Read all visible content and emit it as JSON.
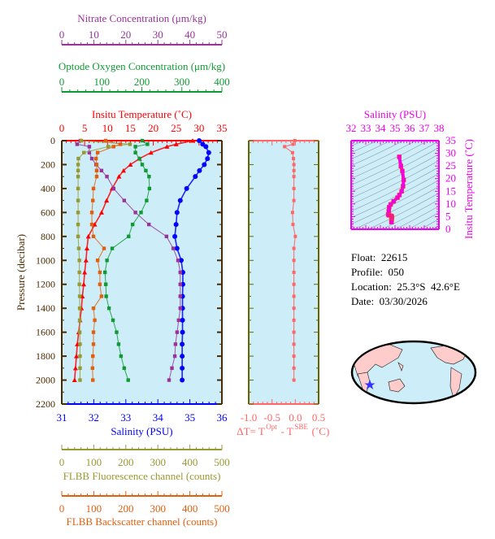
{
  "colors": {
    "nitrate": "#993399",
    "oxygen": "#119933",
    "temperature": "#ff0000",
    "salinity": "#0000ff",
    "fluorescence": "#999933",
    "backscatter": "#e06010",
    "delta_t": "#ff6666",
    "ts": "#ee00ee",
    "plot_bg": "#cdeef8",
    "frame": "#4a2a00"
  },
  "info": {
    "float": "Float:  22615",
    "profile": "Profile:  050",
    "location": "Location:  25.3°S  42.6°E",
    "date": "Date:  03/30/2026"
  },
  "chart_data": [
    {
      "type": "line",
      "ylabel": "Pressure (decibar)",
      "ylim": [
        2200,
        0
      ],
      "yticks": [
        0,
        200,
        400,
        600,
        800,
        1000,
        1200,
        1400,
        1600,
        1800,
        2000,
        2200
      ],
      "grid": false,
      "axes": {
        "nitrate": {
          "label": "Nitrate Concentration (μm/kg)",
          "range": [
            0,
            50
          ],
          "ticks": [
            0,
            10,
            20,
            30,
            40,
            50
          ],
          "position": "top"
        },
        "oxygen": {
          "label": "Optode Oxygen Concentration (μm/kg)",
          "range": [
            0,
            400
          ],
          "ticks": [
            0,
            100,
            200,
            300,
            400
          ],
          "position": "top"
        },
        "temperature": {
          "label": "Insitu Temperature (˚C)",
          "range": [
            0,
            35
          ],
          "ticks": [
            0,
            5,
            10,
            15,
            20,
            25,
            30,
            35
          ],
          "position": "top"
        },
        "salinity": {
          "label": "Salinity (PSU)",
          "range": [
            31,
            36
          ],
          "ticks": [
            31,
            32,
            33,
            34,
            35,
            36
          ],
          "position": "bottom"
        },
        "fluorescence": {
          "label": "FLBB Fluorescence channel (counts)",
          "range": [
            0,
            500
          ],
          "ticks": [
            0,
            100,
            200,
            300,
            400,
            500
          ],
          "position": "bottom"
        },
        "backscatter": {
          "label": "FLBB Backscatter channel (counts)",
          "range": [
            0,
            500
          ],
          "ticks": [
            0,
            100,
            200,
            300,
            400,
            500
          ],
          "position": "bottom"
        }
      },
      "pressure": [
        0,
        30,
        50,
        100,
        150,
        200,
        250,
        300,
        400,
        500,
        600,
        700,
        800,
        900,
        1000,
        1100,
        1200,
        1300,
        1400,
        1500,
        1600,
        1700,
        1800,
        1900,
        2000
      ],
      "series": [
        {
          "key": "temperature",
          "marker": "triangle",
          "values": [
            28.6,
            25,
            23,
            19.5,
            17,
            15,
            13.5,
            12.5,
            11,
            9.8,
            8.7,
            7.2,
            5.8,
            5.5,
            5.3,
            5.0,
            4.8,
            4.5,
            4.3,
            4.0,
            3.7,
            3.4,
            3.2,
            3.0,
            2.8
          ]
        },
        {
          "key": "salinity",
          "marker": "circle",
          "values": [
            35.29,
            35.4,
            35.5,
            35.59,
            35.55,
            35.45,
            35.3,
            35.17,
            34.9,
            34.7,
            34.6,
            34.57,
            34.53,
            34.6,
            34.73,
            34.78,
            34.78,
            34.77,
            34.77,
            34.77,
            34.77,
            34.76,
            34.76,
            34.76,
            34.76
          ]
        },
        {
          "key": "nitrate",
          "marker": "square",
          "values": [
            5.8,
            4.8,
            8.6,
            8.6,
            9.4,
            10.7,
            12.4,
            14.1,
            16.2,
            19.5,
            23,
            27.2,
            32.7,
            34.8,
            36.3,
            37,
            37,
            37,
            37,
            36.5,
            36,
            35.5,
            35.3,
            34.4,
            33.5
          ]
        },
        {
          "key": "oxygen",
          "marker": "square",
          "values": [
            201,
            214,
            184,
            184,
            194,
            201,
            210,
            218,
            219,
            212,
            198,
            177,
            167,
            126,
            113,
            108,
            110,
            111,
            118,
            128,
            137,
            142,
            148,
            156,
            166
          ]
        },
        {
          "key": "fluorescence",
          "marker": "square",
          "values": [
            61,
            213,
            145,
            69,
            52,
            51,
            51,
            51,
            51,
            51,
            51,
            51,
            51,
            53,
            55,
            55,
            55,
            56,
            56,
            56,
            56,
            57,
            57,
            57,
            57
          ]
        },
        {
          "key": "backscatter",
          "marker": "square",
          "values": [
            137,
            183,
            162,
            112,
            107,
            109,
            109,
            109,
            99,
            97,
            94,
            94,
            99,
            132,
            112,
            119,
            119,
            124,
            99,
            103,
            99,
            99,
            97,
            96,
            97
          ]
        }
      ]
    },
    {
      "type": "line",
      "xlabel": "ΔT= T",
      "xlabel_sup1": "Opt",
      "xlabel_mid": " - T",
      "xlabel_sup2": "SBE",
      "xlabel_end": " (˚C)",
      "xlim": [
        -1.0,
        0.5
      ],
      "xticks": [
        "-1.0",
        "-0.5",
        "0.0",
        "0.5"
      ],
      "ylim": [
        2200,
        0
      ],
      "pressure": [
        0,
        30,
        50,
        100,
        150,
        200,
        250,
        300,
        400,
        500,
        600,
        700,
        800,
        900,
        1000,
        1100,
        1200,
        1300,
        1400,
        1500,
        1600,
        1700,
        1800,
        1900,
        2000
      ],
      "values": [
        -0.01,
        -0.05,
        -0.23,
        -0.06,
        -0.04,
        -0.03,
        -0.03,
        -0.03,
        -0.03,
        -0.03,
        -0.06,
        -0.05,
        0.0,
        -0.03,
        -0.03,
        -0.03,
        -0.03,
        -0.03,
        -0.03,
        -0.03,
        -0.03,
        -0.03,
        -0.03,
        -0.03,
        -0.03
      ]
    },
    {
      "type": "line",
      "xlabel": "Salinity (PSU)",
      "ylabel": "Insitu Temperature (˚C)",
      "xlim": [
        32,
        38
      ],
      "xticks": [
        32,
        33,
        34,
        35,
        36,
        37,
        38
      ],
      "ylim": [
        0,
        35
      ],
      "yticks": [
        0,
        5,
        10,
        15,
        20,
        25,
        30,
        35
      ],
      "salinity": [
        35.29,
        35.4,
        35.5,
        35.59,
        35.55,
        35.45,
        35.3,
        35.17,
        34.9,
        34.7,
        34.6,
        34.57,
        34.53,
        34.6,
        34.73,
        34.78,
        34.78,
        34.77,
        34.77,
        34.77,
        34.77,
        34.76,
        34.76,
        34.76,
        34.76
      ],
      "temperature": [
        28.6,
        25,
        23,
        19.5,
        17,
        15,
        13.5,
        12.5,
        11,
        9.8,
        8.7,
        7.2,
        5.8,
        5.5,
        5.3,
        5.0,
        4.8,
        4.5,
        4.3,
        4.0,
        3.7,
        3.4,
        3.2,
        3.0,
        2.8
      ]
    }
  ],
  "map": {
    "marker_color": "#3333ff",
    "land_color": "#ffcccc",
    "ocean_color": "#cdeef8"
  }
}
